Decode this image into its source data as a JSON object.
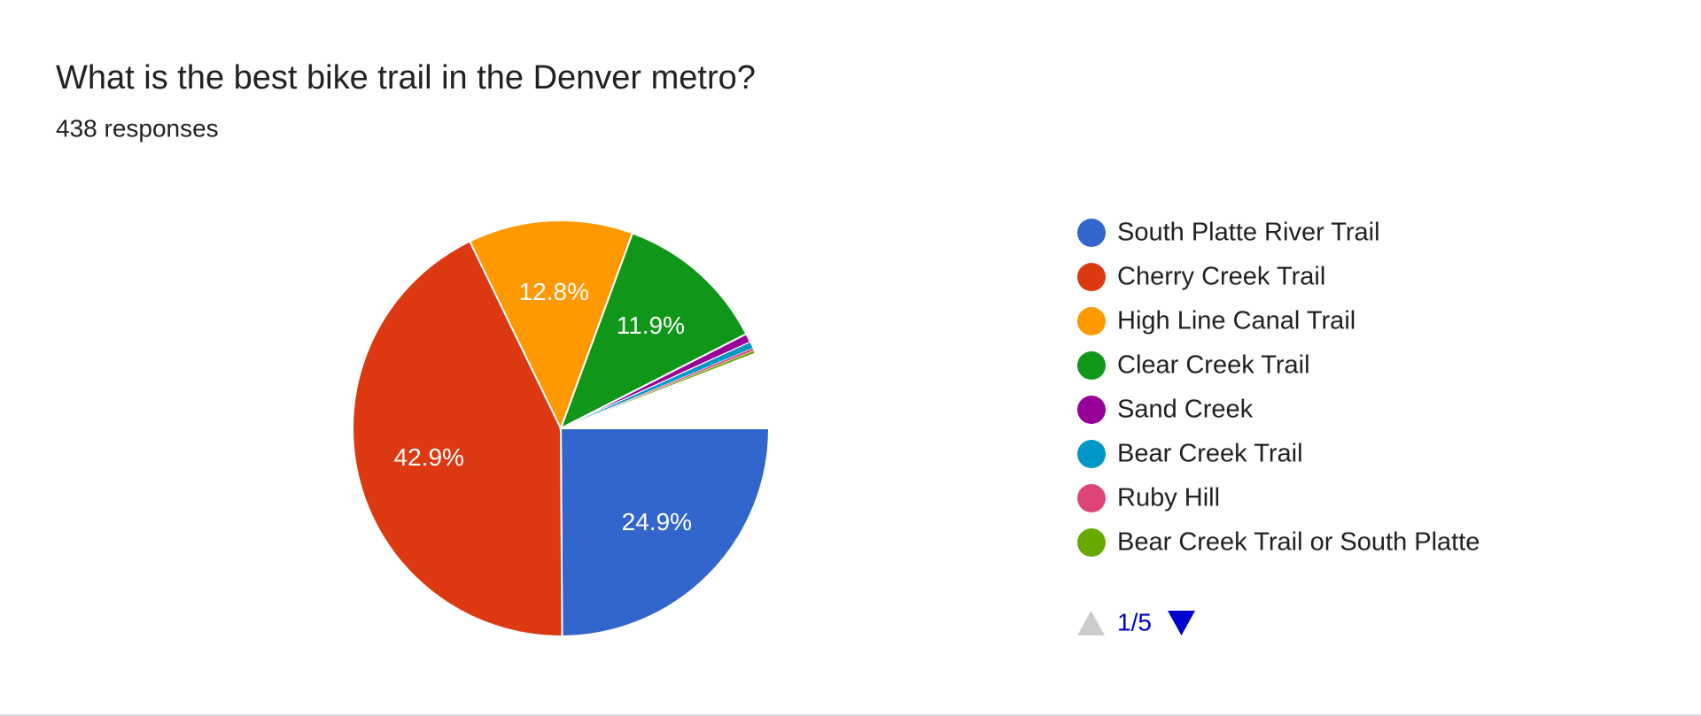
{
  "chart_data": {
    "type": "pie",
    "title": "What is the best bike trail in the Denver metro?",
    "subtitle": "438 responses",
    "categories": [
      "South Platte River Trail",
      "Cherry Creek Trail",
      "High Line Canal Trail",
      "Clear Creek Trail",
      "Sand Creek",
      "Bear Creek Trail",
      "Ruby Hill",
      "Bear Creek Trail or South Platte"
    ],
    "values": [
      24.9,
      42.9,
      12.8,
      11.9,
      0.7,
      0.5,
      0.2,
      0.2
    ],
    "value_labels": [
      "24.9%",
      "42.9%",
      "12.8%",
      "11.9%",
      null,
      null,
      null,
      null
    ],
    "colors": [
      "#3366cc",
      "#dc3912",
      "#ff9900",
      "#109618",
      "#990099",
      "#0099c6",
      "#dd4477",
      "#66aa00"
    ],
    "legend": "right",
    "pager": "1/5"
  }
}
